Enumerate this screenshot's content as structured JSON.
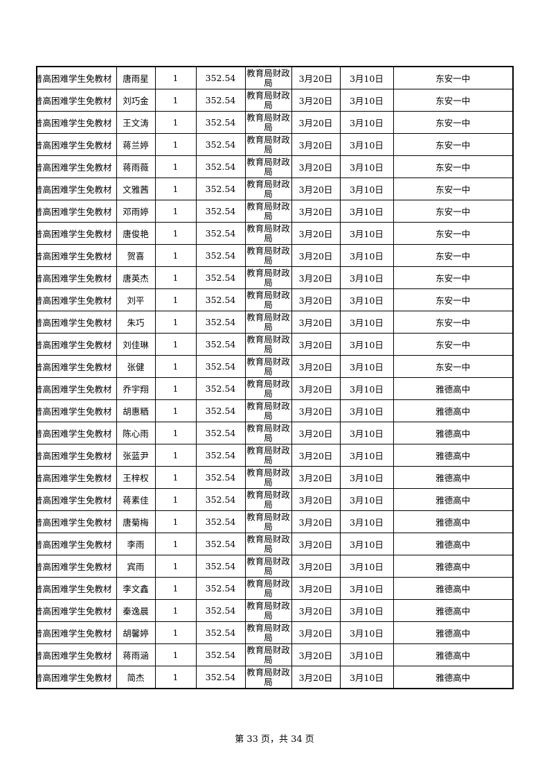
{
  "table": {
    "item": "普高困难学生免教材",
    "quantity": "1",
    "amount": "352.54",
    "payer": "教育局财政局",
    "date1": "3月20日",
    "date2": "3月10日",
    "rows": [
      {
        "name": "唐雨星",
        "school": "东安一中"
      },
      {
        "name": "刘巧金",
        "school": "东安一中"
      },
      {
        "name": "王文涛",
        "school": "东安一中"
      },
      {
        "name": "蒋兰婷",
        "school": "东安一中"
      },
      {
        "name": "蒋雨薇",
        "school": "东安一中"
      },
      {
        "name": "文雅茜",
        "school": "东安一中"
      },
      {
        "name": "邓雨婷",
        "school": "东安一中"
      },
      {
        "name": "唐俊艳",
        "school": "东安一中"
      },
      {
        "name": "贺喜",
        "school": "东安一中"
      },
      {
        "name": "唐英杰",
        "school": "东安一中"
      },
      {
        "name": "刘平",
        "school": "东安一中"
      },
      {
        "name": "朱巧",
        "school": "东安一中"
      },
      {
        "name": "刘佳琳",
        "school": "东安一中"
      },
      {
        "name": "张健",
        "school": "东安一中"
      },
      {
        "name": "乔宇翔",
        "school": "雅德高中"
      },
      {
        "name": "胡惠粞",
        "school": "雅德高中"
      },
      {
        "name": "陈心雨",
        "school": "雅德高中"
      },
      {
        "name": "张蓝尹",
        "school": "雅德高中"
      },
      {
        "name": "王梓权",
        "school": "雅德高中"
      },
      {
        "name": "蒋素佳",
        "school": "雅德高中"
      },
      {
        "name": "唐菊梅",
        "school": "雅德高中"
      },
      {
        "name": "李雨",
        "school": "雅德高中"
      },
      {
        "name": "宾雨",
        "school": "雅德高中"
      },
      {
        "name": "李文鑫",
        "school": "雅德高中"
      },
      {
        "name": "秦逸晨",
        "school": "雅德高中"
      },
      {
        "name": "胡馨婷",
        "school": "雅德高中"
      },
      {
        "name": "蒋雨涵",
        "school": "雅德高中"
      },
      {
        "name": "简杰",
        "school": "雅德高中"
      }
    ]
  },
  "footer": {
    "page_text": "第 33 页，共 34 页"
  }
}
